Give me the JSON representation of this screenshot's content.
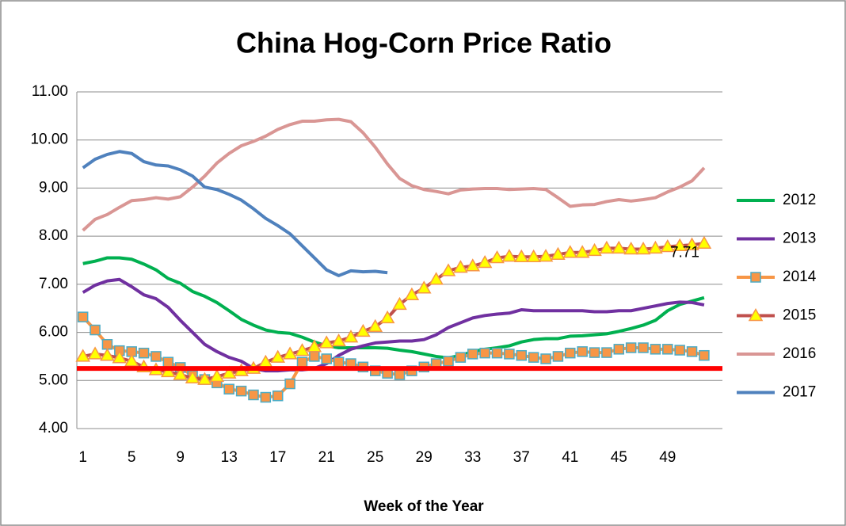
{
  "chart_data": {
    "type": "line",
    "title": "China Hog-Corn Price Ratio",
    "x_label": "Week of the Year",
    "x": [
      1,
      2,
      3,
      4,
      5,
      6,
      7,
      8,
      9,
      10,
      11,
      12,
      13,
      14,
      15,
      16,
      17,
      18,
      19,
      20,
      21,
      22,
      23,
      24,
      25,
      26,
      27,
      28,
      29,
      30,
      31,
      32,
      33,
      34,
      35,
      36,
      37,
      38,
      39,
      40,
      41,
      42,
      43,
      44,
      45,
      46,
      47,
      48,
      49,
      50,
      51,
      52
    ],
    "xlim": [
      0.5,
      53.5
    ],
    "xticks": [
      1,
      5,
      9,
      13,
      17,
      21,
      25,
      29,
      33,
      37,
      41,
      45,
      49
    ],
    "ylim": [
      4,
      11
    ],
    "yticks": [
      {
        "value": 4,
        "label": "4.00"
      },
      {
        "value": 5,
        "label": "5.00"
      },
      {
        "value": 6,
        "label": "6.00"
      },
      {
        "value": 7,
        "label": "7.00"
      },
      {
        "value": 8,
        "label": "8.00"
      },
      {
        "value": 9,
        "label": "9.00"
      },
      {
        "value": 10,
        "label": "10.00"
      },
      {
        "value": 11,
        "label": "11.00"
      }
    ],
    "grid": true,
    "legend": "right",
    "annotation": "7.71",
    "reference_line": {
      "value": 5.25,
      "color": "#ff0000"
    },
    "series": [
      {
        "name": "2012",
        "color": "#00b050",
        "marker": "none",
        "values": [
          7.43,
          7.48,
          7.55,
          7.55,
          7.52,
          7.42,
          7.3,
          7.12,
          7.02,
          6.85,
          6.75,
          6.62,
          6.45,
          6.27,
          6.15,
          6.05,
          6.0,
          5.98,
          5.9,
          5.8,
          5.72,
          5.68,
          5.68,
          5.68,
          5.68,
          5.67,
          5.63,
          5.6,
          5.55,
          5.5,
          5.47,
          5.52,
          5.6,
          5.65,
          5.68,
          5.72,
          5.8,
          5.85,
          5.87,
          5.87,
          5.92,
          5.93,
          5.95,
          5.97,
          6.02,
          6.08,
          6.15,
          6.25,
          6.45,
          6.58,
          6.65,
          6.72
        ]
      },
      {
        "name": "2013",
        "color": "#7030a0",
        "marker": "none",
        "values": [
          6.83,
          6.98,
          7.07,
          7.1,
          6.95,
          6.78,
          6.7,
          6.52,
          6.25,
          6.0,
          5.75,
          5.6,
          5.48,
          5.4,
          5.25,
          5.2,
          5.2,
          5.22,
          5.22,
          5.25,
          5.35,
          5.52,
          5.65,
          5.72,
          5.78,
          5.8,
          5.82,
          5.82,
          5.85,
          5.95,
          6.1,
          6.2,
          6.3,
          6.35,
          6.38,
          6.4,
          6.47,
          6.45,
          6.45,
          6.45,
          6.45,
          6.45,
          6.43,
          6.43,
          6.45,
          6.45,
          6.5,
          6.55,
          6.6,
          6.63,
          6.62,
          6.57
        ]
      },
      {
        "name": "2014",
        "color": "#f79646",
        "marker": "square",
        "marker_fill": "#f79646",
        "marker_edge": "#4bacc6",
        "values": [
          6.32,
          6.05,
          5.75,
          5.62,
          5.6,
          5.57,
          5.5,
          5.38,
          5.27,
          5.1,
          5.02,
          4.95,
          4.82,
          4.78,
          4.7,
          4.65,
          4.68,
          4.93,
          5.38,
          5.5,
          5.45,
          5.38,
          5.35,
          5.28,
          5.2,
          5.15,
          5.12,
          5.2,
          5.28,
          5.35,
          5.4,
          5.48,
          5.55,
          5.57,
          5.57,
          5.55,
          5.52,
          5.48,
          5.45,
          5.5,
          5.57,
          5.6,
          5.58,
          5.58,
          5.65,
          5.68,
          5.68,
          5.65,
          5.65,
          5.63,
          5.6,
          5.52
        ]
      },
      {
        "name": "2015",
        "color": "#c0504d",
        "marker": "triangle",
        "marker_fill": "#ffff00",
        "marker_edge": "#f79646",
        "values": [
          5.5,
          5.55,
          5.52,
          5.47,
          5.4,
          5.28,
          5.22,
          5.18,
          5.12,
          5.05,
          5.02,
          5.08,
          5.15,
          5.2,
          5.25,
          5.38,
          5.48,
          5.55,
          5.62,
          5.7,
          5.78,
          5.82,
          5.9,
          6.02,
          6.12,
          6.3,
          6.58,
          6.78,
          6.92,
          7.1,
          7.28,
          7.35,
          7.38,
          7.45,
          7.55,
          7.58,
          7.57,
          7.57,
          7.58,
          7.62,
          7.66,
          7.66,
          7.7,
          7.75,
          7.75,
          7.73,
          7.73,
          7.75,
          7.78,
          7.8,
          7.82,
          7.85
        ]
      },
      {
        "name": "2016",
        "color": "#d99694",
        "marker": "none",
        "values": [
          8.12,
          8.35,
          8.45,
          8.6,
          8.74,
          8.76,
          8.8,
          8.77,
          8.82,
          9.02,
          9.25,
          9.52,
          9.72,
          9.88,
          9.97,
          10.08,
          10.22,
          10.32,
          10.39,
          10.39,
          10.42,
          10.43,
          10.38,
          10.15,
          9.85,
          9.5,
          9.2,
          9.05,
          8.97,
          8.93,
          8.88,
          8.96,
          8.98,
          8.99,
          8.99,
          8.97,
          8.98,
          8.99,
          8.97,
          8.8,
          8.62,
          8.65,
          8.66,
          8.72,
          8.76,
          8.73,
          8.76,
          8.8,
          8.92,
          9.02,
          9.15,
          9.42
        ]
      },
      {
        "name": "2017",
        "color": "#4f81bd",
        "marker": "none",
        "values": [
          9.42,
          9.6,
          9.7,
          9.76,
          9.72,
          9.55,
          9.48,
          9.46,
          9.38,
          9.25,
          9.02,
          8.97,
          8.87,
          8.75,
          8.57,
          8.37,
          8.22,
          8.05,
          7.8,
          7.55,
          7.3,
          7.18,
          7.28,
          7.26,
          7.27,
          7.24,
          null,
          null,
          null,
          null,
          null,
          null,
          null,
          null,
          null,
          null,
          null,
          null,
          null,
          null,
          null,
          null,
          null,
          null,
          null,
          null,
          null,
          null,
          null,
          null,
          null,
          null
        ]
      }
    ]
  }
}
